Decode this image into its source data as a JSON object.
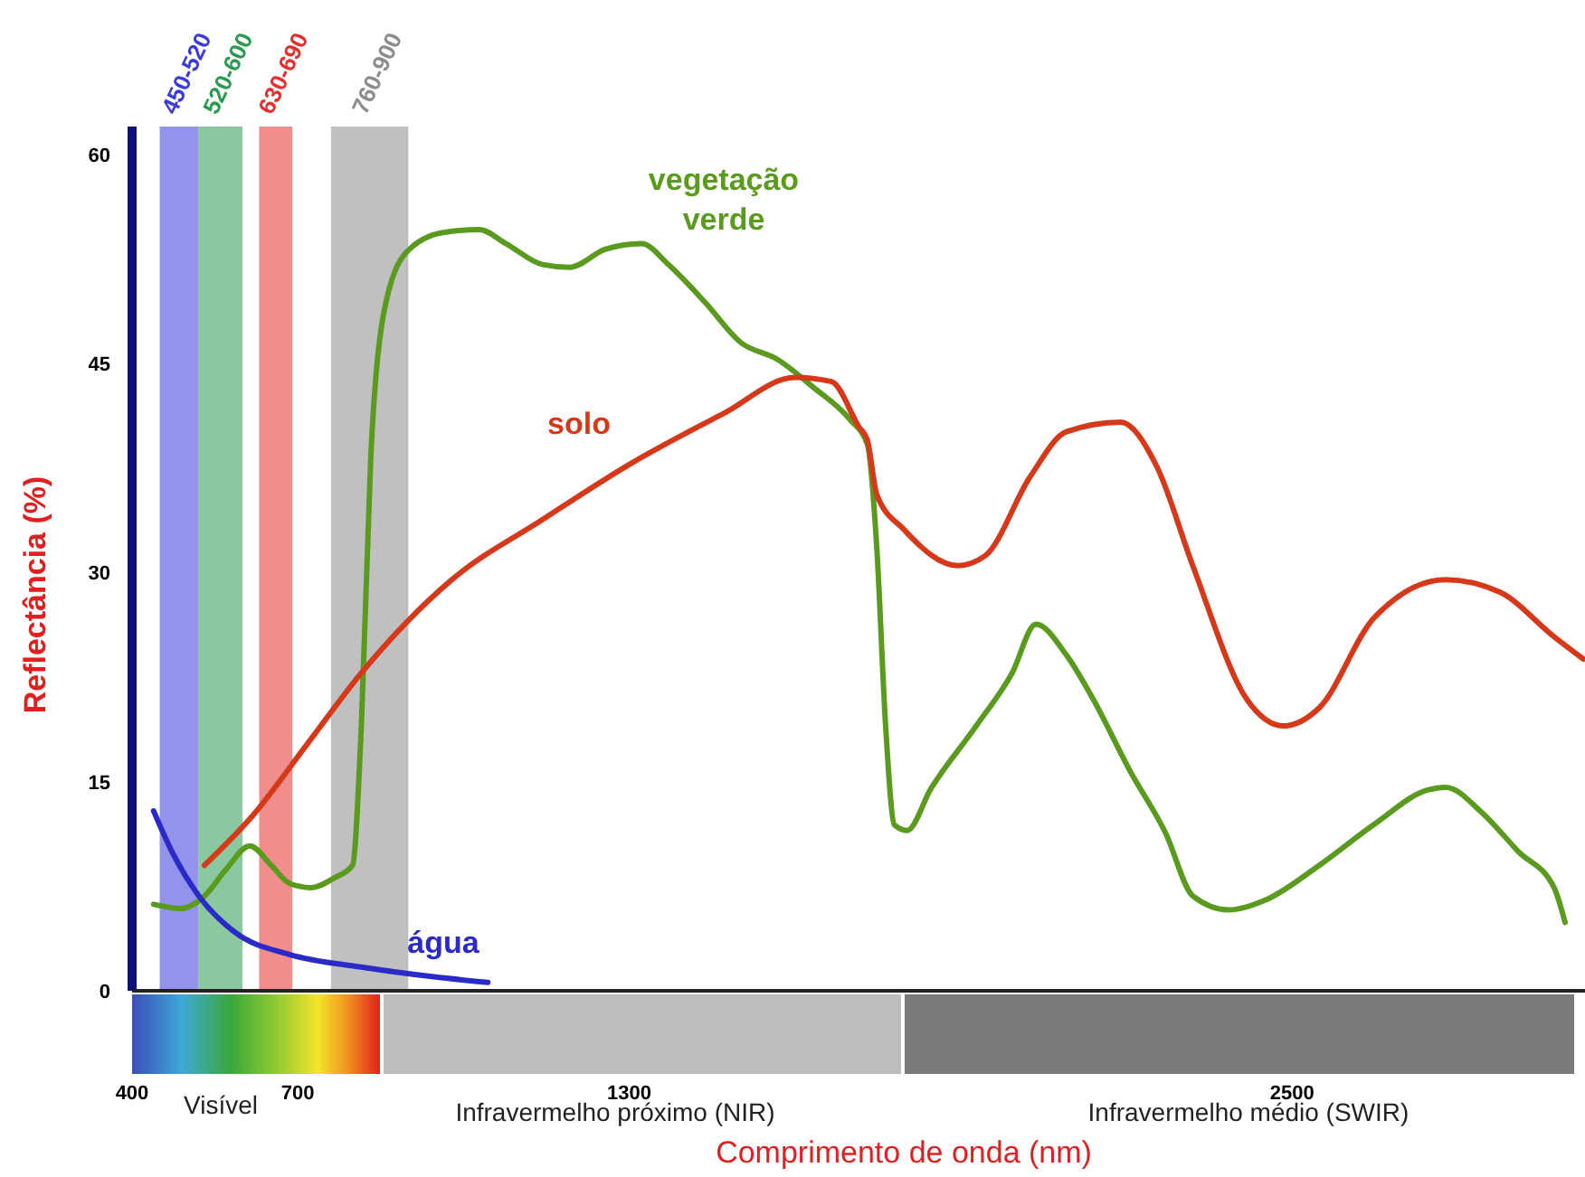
{
  "chart_data": {
    "type": "line",
    "xlabel": "Comprimento de onda (nm)",
    "ylabel": "Reflectância (%)",
    "xlim": [
      400,
      3030
    ],
    "ylim": [
      0,
      62
    ],
    "xticks": [
      400,
      700,
      1300,
      2500
    ],
    "yticks": [
      0,
      15,
      30,
      45,
      60
    ],
    "grid": false,
    "legend": false,
    "marker": "none",
    "line_style": "solid",
    "series": [
      {
        "name": "vegetação verde",
        "color": "#5a9a1e",
        "x": [
          439,
          488,
          531,
          570,
          613,
          652,
          685,
          724,
          766,
          799,
          815,
          832,
          855,
          897,
          963,
          1028,
          1077,
          1143,
          1192,
          1257,
          1322,
          1371,
          1437,
          1502,
          1568,
          1633,
          1699,
          1731,
          1748,
          1764,
          1780,
          1803,
          1846,
          1928,
          1993,
          2036,
          2091,
          2140,
          2206,
          2271,
          2320,
          2385,
          2451,
          2549,
          2647,
          2745,
          2778,
          2843,
          2909,
          2974,
          2994
        ],
        "values": [
          6.2,
          5.9,
          6.8,
          8.7,
          10.4,
          9.0,
          7.7,
          7.4,
          8.1,
          9.0,
          19.0,
          38.2,
          48.5,
          53.0,
          54.4,
          54.6,
          53.6,
          52.1,
          51.9,
          53.2,
          53.6,
          52.1,
          49.4,
          46.5,
          45.3,
          43.3,
          41.0,
          39.2,
          31.8,
          19.0,
          11.9,
          11.5,
          14.5,
          19.0,
          22.8,
          26.3,
          24.1,
          20.9,
          15.8,
          11.3,
          6.8,
          5.8,
          6.5,
          9.0,
          11.9,
          14.4,
          14.6,
          12.8,
          10.0,
          7.4,
          4.9
        ]
      },
      {
        "name": "solo",
        "color": "#d6391a",
        "x": [
          531,
          619,
          717,
          815,
          979,
          1143,
          1306,
          1470,
          1600,
          1666,
          1715,
          1731,
          1748,
          1797,
          1895,
          1944,
          2026,
          2091,
          2189,
          2255,
          2320,
          2418,
          2484,
          2549,
          2647,
          2778,
          2876,
          2974,
          3027
        ],
        "values": [
          9.0,
          12.6,
          17.7,
          22.8,
          29.5,
          33.8,
          37.9,
          41.4,
          44.0,
          43.7,
          40.5,
          39.5,
          35.6,
          33.1,
          30.5,
          31.2,
          36.9,
          40.1,
          40.8,
          37.6,
          30.5,
          20.9,
          19.0,
          20.3,
          26.7,
          29.5,
          28.6,
          25.4,
          23.8
        ]
      },
      {
        "name": "água",
        "color": "#2a2ac8",
        "x": [
          439,
          472,
          521,
          586,
          685,
          815,
          946,
          1044
        ],
        "values": [
          12.9,
          10.0,
          6.8,
          4.2,
          2.6,
          1.7,
          1.0,
          0.6
        ]
      }
    ],
    "bands": [
      {
        "axis": "x",
        "from": 450,
        "to": 520,
        "label": "450-520",
        "color": "#3b3bdc"
      },
      {
        "axis": "x",
        "from": 520,
        "to": 600,
        "label": "520-600",
        "color": "#2a9a50"
      },
      {
        "axis": "x",
        "from": 630,
        "to": 690,
        "label": "630-690",
        "color": "#e53030"
      },
      {
        "axis": "x",
        "from": 760,
        "to": 900,
        "label": "760-900",
        "color": "#8c8c8c"
      }
    ],
    "annotations": [
      "Visível",
      "Infravermelho próximo (NIR)",
      "Infravermelho médio (SWIR)"
    ]
  }
}
